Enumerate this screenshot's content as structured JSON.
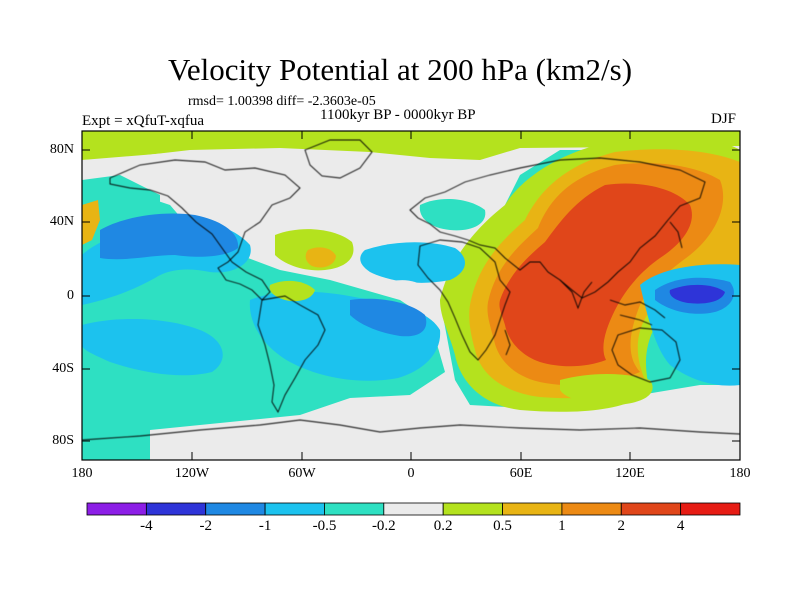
{
  "title": "Velocity Potential at 200 hPa (km2/s)",
  "stats": "rmsd= 1.00398 diff= -2.3603e-05",
  "period": "1100kyr BP - 0000kyr BP",
  "experiment": "Expt = xQfuT-xqfua",
  "season": "DJF",
  "lat_labels": [
    "80N",
    "40N",
    "0",
    "40S",
    "80S"
  ],
  "lon_labels": [
    "180",
    "120W",
    "60W",
    "0",
    "60E",
    "120E",
    "180"
  ],
  "colorbar": {
    "labels": [
      "-4",
      "-2",
      "-1",
      "-0.5",
      "-0.2",
      "0.2",
      "0.5",
      "1",
      "2",
      "4"
    ],
    "colors": [
      "#8c1ee6",
      "#2e34d8",
      "#1f88e3",
      "#1cc2ee",
      "#2ee0c2",
      "#ebebeb",
      "#b4e21e",
      "#e8b414",
      "#ec8a14",
      "#e0461a",
      "#e61c14"
    ]
  }
}
